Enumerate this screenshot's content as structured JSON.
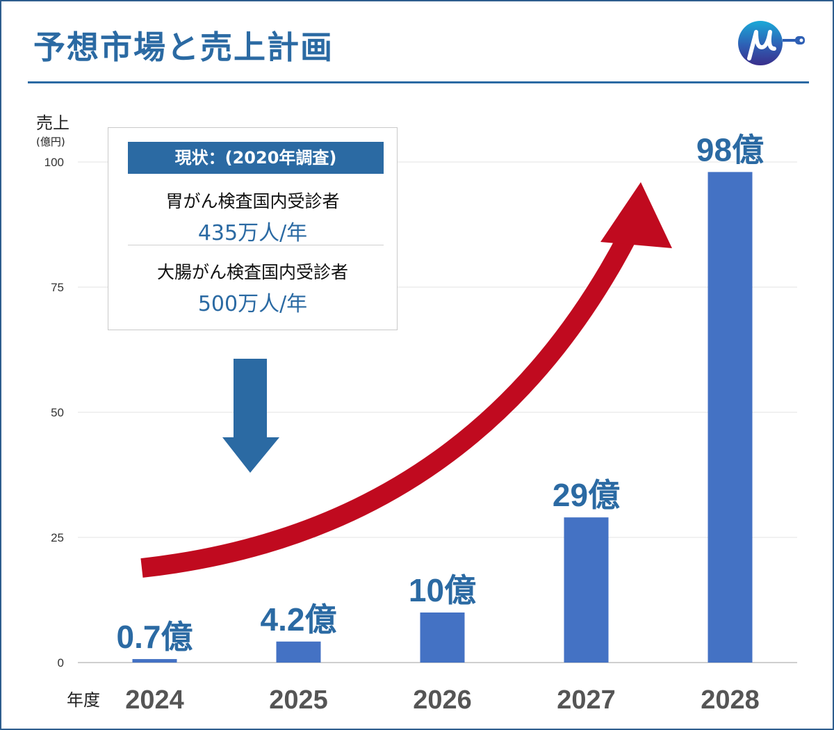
{
  "header": {
    "title": "予想市場と売上計画"
  },
  "colors": {
    "brand": "#2b6aa3",
    "bar": "#4472c4",
    "growth_arrow": "#c00a1f",
    "down_arrow": "#2b6aa3"
  },
  "status_box": {
    "heading": "現状：(2020年調査)",
    "items": [
      {
        "label": "胃がん検査国内受診者",
        "value": "435万人/年"
      },
      {
        "label": "大腸がん検査国内受診者",
        "value": "500万人/年"
      }
    ]
  },
  "chart_data": {
    "type": "bar",
    "title": "予想市場と売上計画",
    "ylabel": "売上",
    "ylabel_unit": "(億円)",
    "xlabel": "年度",
    "categories": [
      "2024",
      "2025",
      "2026",
      "2027",
      "2028"
    ],
    "values": [
      0.7,
      4.2,
      10,
      29,
      98
    ],
    "data_labels": [
      "0.7億",
      "4.2億",
      "10億",
      "29億",
      "98億"
    ],
    "ylim": [
      0,
      100
    ],
    "yticks": [
      0,
      25,
      50,
      75,
      100
    ],
    "grid": true,
    "legend": "none",
    "annotations": [
      "upward growth arrow",
      "downward arrow under status box"
    ]
  }
}
